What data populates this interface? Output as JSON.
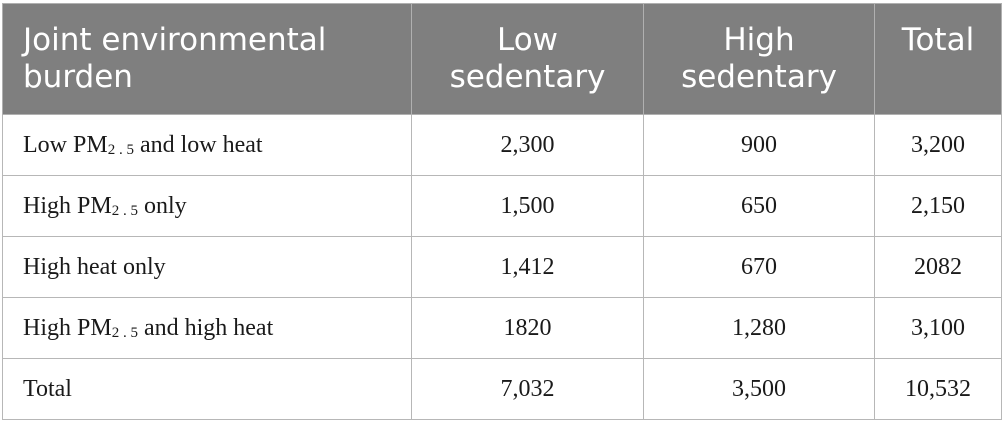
{
  "table": {
    "headers": [
      {
        "line1": "Joint environmental",
        "line2": "burden"
      },
      {
        "line1": "Low",
        "line2": "sedentary"
      },
      {
        "line1": "High",
        "line2": "sedentary"
      },
      {
        "line1": "Total",
        "line2": ""
      }
    ],
    "rows": [
      {
        "label_pre": "Low PM",
        "label_sub": "2 . 5",
        "label_post": " and low heat",
        "low": "2,300",
        "high": "900",
        "total": "3,200"
      },
      {
        "label_pre": "High PM",
        "label_sub": "2 . 5",
        "label_post": " only",
        "low": "1,500",
        "high": "650",
        "total": "2,150"
      },
      {
        "label_pre": "High heat only",
        "label_sub": "",
        "label_post": "",
        "low": "1,412",
        "high": "670",
        "total": "2082"
      },
      {
        "label_pre": "High PM",
        "label_sub": "2 . 5",
        "label_post": " and high heat",
        "low": "1820",
        "high": "1,280",
        "total": "3,100"
      },
      {
        "label_pre": "Total",
        "label_sub": "",
        "label_post": "",
        "low": "7,032",
        "high": "3,500",
        "total": "10,532"
      }
    ]
  },
  "colors": {
    "header_bg": "#7f7f7f",
    "header_text": "#ffffff",
    "grid": "#b7b7b7"
  }
}
